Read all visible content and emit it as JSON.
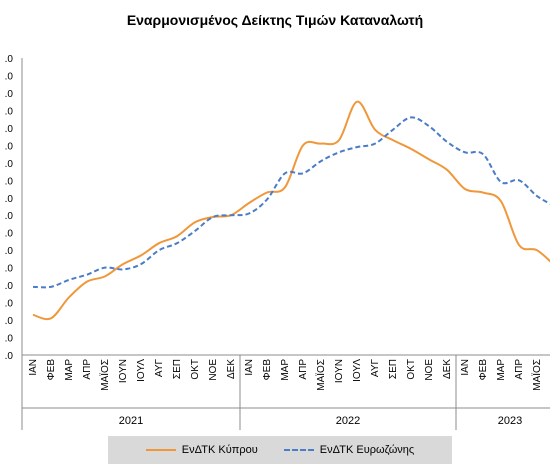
{
  "chart_data": {
    "type": "line",
    "title": "Εναρμονισμένος Δείκτης Τιμών Καταναλωτή",
    "xlabel": "",
    "ylabel": "",
    "ylim": [
      -3.0,
      14.0
    ],
    "y_tick_step": 1.0,
    "y_tick_labels": [
      ".0",
      ".0",
      ".0",
      ".0",
      ".0",
      ".0",
      ".0",
      ".0",
      ".0",
      ".0",
      ".0",
      ".0",
      ".0",
      ".0",
      ".0",
      ".0",
      ".0",
      ".0"
    ],
    "grid": false,
    "legend_position": "bottom",
    "categories": [
      "ΙΑΝ",
      "ΦΕΒ",
      "ΜΑΡ",
      "ΑΠΡ",
      "ΜΑΪΟΣ",
      "ΙΟΥΝ",
      "ΙΟΥΛ",
      "ΑΥΓ",
      "ΣΕΠ",
      "ΟΚΤ",
      "ΝΟΕ",
      "ΔΕΚ",
      "ΙΑΝ",
      "ΦΕΒ",
      "ΜΑΡ",
      "ΑΠΡ",
      "ΜΑΪΟΣ",
      "ΙΟΥΝ",
      "ΙΟΥΛ",
      "ΑΥΓ",
      "ΣΕΠ",
      "ΟΚΤ",
      "ΝΟΕ",
      "ΔΕΚ",
      "ΙΑΝ",
      "ΦΕΒ",
      "ΜΑΡ",
      "ΑΠΡ",
      "ΜΑΪΟΣ",
      "ΙΟΥΝ"
    ],
    "year_groups": [
      {
        "label": "2021",
        "count": 12
      },
      {
        "label": "2022",
        "count": 12
      },
      {
        "label": "2023",
        "count": 6
      }
    ],
    "series": [
      {
        "name": "ΕνΔΤΚ Κύπρου",
        "color": "#f0973a",
        "style": "solid",
        "values": [
          -0.7,
          -0.9,
          0.3,
          1.2,
          1.5,
          2.2,
          2.7,
          3.4,
          3.8,
          4.6,
          4.9,
          5.0,
          5.7,
          6.3,
          6.6,
          9.0,
          9.1,
          9.3,
          11.5,
          9.9,
          9.3,
          8.8,
          8.2,
          7.6,
          6.5,
          6.3,
          5.8,
          3.3,
          3.0,
          2.1
        ]
      },
      {
        "name": "ΕνΔΤΚ Ευρωζώνης",
        "color": "#4a7cc7",
        "style": "dashed",
        "values": [
          0.9,
          0.9,
          1.3,
          1.6,
          2.0,
          1.9,
          2.2,
          3.0,
          3.4,
          4.1,
          4.9,
          5.0,
          5.1,
          5.9,
          7.4,
          7.4,
          8.1,
          8.6,
          8.9,
          9.1,
          9.9,
          10.6,
          10.1,
          9.2,
          8.6,
          8.5,
          6.9,
          7.0,
          6.1,
          5.5
        ]
      }
    ]
  }
}
